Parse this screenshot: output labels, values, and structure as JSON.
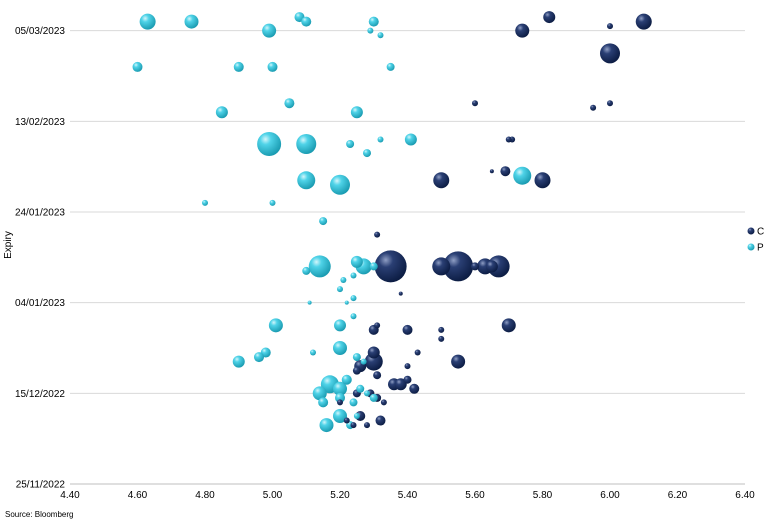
{
  "source": "Source: Bloomberg",
  "colors": {
    "C": "#0f2553",
    "P": "#2fc5dd",
    "grid": "#d9d9d9",
    "axis": "#bfbfbf"
  },
  "chart_data": {
    "type": "scatter",
    "subtype": "bubble",
    "ylabel": "Expiry",
    "xlim": [
      4.4,
      6.4
    ],
    "x_ticks": [
      "4.40",
      "4.60",
      "4.80",
      "5.00",
      "5.20",
      "5.40",
      "5.60",
      "5.80",
      "6.00",
      "6.20",
      "6.40"
    ],
    "ylim": [
      "2022-11-25",
      "2023-03-10"
    ],
    "y_ticks": [
      "05/03/2023",
      "13/02/2023",
      "24/01/2023",
      "04/01/2023",
      "15/12/2022",
      "25/11/2022"
    ],
    "grid": "horizontal",
    "legend": "right",
    "series": [
      {
        "name": "C",
        "points": [
          {
            "x": 5.82,
            "date": "2023-03-08",
            "s": 6
          },
          {
            "x": 6.1,
            "date": "2023-03-07",
            "s": 8
          },
          {
            "x": 6.0,
            "date": "2023-03-06",
            "s": 3
          },
          {
            "x": 5.74,
            "date": "2023-03-05",
            "s": 7
          },
          {
            "x": 6.0,
            "date": "2023-02-28",
            "s": 10
          },
          {
            "x": 5.6,
            "date": "2023-02-17",
            "s": 3
          },
          {
            "x": 5.95,
            "date": "2023-02-16",
            "s": 3
          },
          {
            "x": 6.0,
            "date": "2023-02-17",
            "s": 3
          },
          {
            "x": 5.71,
            "date": "2023-02-09",
            "s": 3
          },
          {
            "x": 5.7,
            "date": "2023-02-09",
            "s": 3
          },
          {
            "x": 5.65,
            "date": "2023-02-02",
            "s": 2
          },
          {
            "x": 5.69,
            "date": "2023-02-02",
            "s": 5
          },
          {
            "x": 5.8,
            "date": "2023-01-31",
            "s": 8
          },
          {
            "x": 5.5,
            "date": "2023-01-31",
            "s": 8
          },
          {
            "x": 5.31,
            "date": "2023-01-19",
            "s": 3
          },
          {
            "x": 5.35,
            "date": "2023-01-12",
            "s": 16
          },
          {
            "x": 5.5,
            "date": "2023-01-12",
            "s": 9
          },
          {
            "x": 5.55,
            "date": "2023-01-12",
            "s": 15
          },
          {
            "x": 5.6,
            "date": "2023-01-12",
            "s": 4
          },
          {
            "x": 5.63,
            "date": "2023-01-12",
            "s": 8
          },
          {
            "x": 5.67,
            "date": "2023-01-12",
            "s": 11
          },
          {
            "x": 5.65,
            "date": "2023-01-12",
            "s": 6
          },
          {
            "x": 5.38,
            "date": "2023-01-06",
            "s": 2
          },
          {
            "x": 5.7,
            "date": "2022-12-30",
            "s": 7
          },
          {
            "x": 5.3,
            "date": "2022-12-29",
            "s": 5
          },
          {
            "x": 5.4,
            "date": "2022-12-29",
            "s": 5
          },
          {
            "x": 5.5,
            "date": "2022-12-29",
            "s": 3
          },
          {
            "x": 5.31,
            "date": "2022-12-30",
            "s": 3
          },
          {
            "x": 5.3,
            "date": "2022-12-24",
            "s": 6
          },
          {
            "x": 5.43,
            "date": "2022-12-24",
            "s": 3
          },
          {
            "x": 5.5,
            "date": "2022-12-27",
            "s": 3
          },
          {
            "x": 5.3,
            "date": "2022-12-22",
            "s": 9
          },
          {
            "x": 5.26,
            "date": "2022-12-21",
            "s": 6
          },
          {
            "x": 5.4,
            "date": "2022-12-21",
            "s": 3
          },
          {
            "x": 5.55,
            "date": "2022-12-22",
            "s": 7
          },
          {
            "x": 5.25,
            "date": "2022-12-20",
            "s": 4
          },
          {
            "x": 5.31,
            "date": "2022-12-19",
            "s": 4
          },
          {
            "x": 5.36,
            "date": "2022-12-17",
            "s": 6
          },
          {
            "x": 5.38,
            "date": "2022-12-17",
            "s": 6
          },
          {
            "x": 5.4,
            "date": "2022-12-18",
            "s": 4
          },
          {
            "x": 5.42,
            "date": "2022-12-16",
            "s": 5
          },
          {
            "x": 5.29,
            "date": "2022-12-15",
            "s": 4
          },
          {
            "x": 5.25,
            "date": "2022-12-15",
            "s": 4
          },
          {
            "x": 5.31,
            "date": "2022-12-14",
            "s": 4
          },
          {
            "x": 5.33,
            "date": "2022-12-13",
            "s": 3
          },
          {
            "x": 5.2,
            "date": "2022-12-13",
            "s": 3
          },
          {
            "x": 5.26,
            "date": "2022-12-10",
            "s": 5
          },
          {
            "x": 5.32,
            "date": "2022-12-09",
            "s": 5
          },
          {
            "x": 5.28,
            "date": "2022-12-08",
            "s": 3
          },
          {
            "x": 5.24,
            "date": "2022-12-08",
            "s": 3
          },
          {
            "x": 5.22,
            "date": "2022-12-09",
            "s": 3
          }
        ]
      },
      {
        "name": "P",
        "points": [
          {
            "x": 4.63,
            "date": "2023-03-07",
            "s": 8
          },
          {
            "x": 4.76,
            "date": "2023-03-07",
            "s": 7
          },
          {
            "x": 5.08,
            "date": "2023-03-08",
            "s": 5
          },
          {
            "x": 5.1,
            "date": "2023-03-07",
            "s": 5
          },
          {
            "x": 4.99,
            "date": "2023-03-05",
            "s": 7
          },
          {
            "x": 5.3,
            "date": "2023-03-07",
            "s": 5
          },
          {
            "x": 5.29,
            "date": "2023-03-05",
            "s": 3
          },
          {
            "x": 5.32,
            "date": "2023-03-04",
            "s": 3
          },
          {
            "x": 4.6,
            "date": "2023-02-25",
            "s": 5
          },
          {
            "x": 4.9,
            "date": "2023-02-25",
            "s": 5
          },
          {
            "x": 5.0,
            "date": "2023-02-25",
            "s": 5
          },
          {
            "x": 5.35,
            "date": "2023-02-25",
            "s": 4
          },
          {
            "x": 4.85,
            "date": "2023-02-15",
            "s": 6
          },
          {
            "x": 5.05,
            "date": "2023-02-17",
            "s": 5
          },
          {
            "x": 5.25,
            "date": "2023-02-15",
            "s": 6
          },
          {
            "x": 4.99,
            "date": "2023-02-08",
            "s": 12
          },
          {
            "x": 5.1,
            "date": "2023-02-08",
            "s": 10
          },
          {
            "x": 5.23,
            "date": "2023-02-08",
            "s": 4
          },
          {
            "x": 5.32,
            "date": "2023-02-09",
            "s": 3
          },
          {
            "x": 5.41,
            "date": "2023-02-09",
            "s": 6
          },
          {
            "x": 5.28,
            "date": "2023-02-06",
            "s": 4
          },
          {
            "x": 5.1,
            "date": "2023-01-31",
            "s": 9
          },
          {
            "x": 5.2,
            "date": "2023-01-30",
            "s": 10
          },
          {
            "x": 5.74,
            "date": "2023-02-01",
            "s": 9
          },
          {
            "x": 4.8,
            "date": "2023-01-26",
            "s": 3
          },
          {
            "x": 5.0,
            "date": "2023-01-26",
            "s": 3
          },
          {
            "x": 5.15,
            "date": "2023-01-22",
            "s": 4
          },
          {
            "x": 5.14,
            "date": "2023-01-12",
            "s": 11
          },
          {
            "x": 5.1,
            "date": "2023-01-11",
            "s": 4
          },
          {
            "x": 5.25,
            "date": "2023-01-13",
            "s": 6
          },
          {
            "x": 5.27,
            "date": "2023-01-12",
            "s": 8
          },
          {
            "x": 5.24,
            "date": "2023-01-10",
            "s": 3
          },
          {
            "x": 5.3,
            "date": "2023-01-12",
            "s": 4
          },
          {
            "x": 5.21,
            "date": "2023-01-09",
            "s": 3
          },
          {
            "x": 5.2,
            "date": "2023-01-07",
            "s": 3
          },
          {
            "x": 5.24,
            "date": "2023-01-05",
            "s": 3
          },
          {
            "x": 5.22,
            "date": "2023-01-04",
            "s": 2
          },
          {
            "x": 5.11,
            "date": "2023-01-04",
            "s": 2
          },
          {
            "x": 5.24,
            "date": "2023-01-01",
            "s": 3
          },
          {
            "x": 5.01,
            "date": "2022-12-30",
            "s": 7
          },
          {
            "x": 5.2,
            "date": "2022-12-30",
            "s": 6
          },
          {
            "x": 5.2,
            "date": "2022-12-25",
            "s": 7
          },
          {
            "x": 4.98,
            "date": "2022-12-24",
            "s": 5
          },
          {
            "x": 4.96,
            "date": "2022-12-23",
            "s": 5
          },
          {
            "x": 4.9,
            "date": "2022-12-22",
            "s": 6
          },
          {
            "x": 5.12,
            "date": "2022-12-24",
            "s": 3
          },
          {
            "x": 5.25,
            "date": "2022-12-23",
            "s": 4
          },
          {
            "x": 5.27,
            "date": "2022-12-22",
            "s": 3
          },
          {
            "x": 5.17,
            "date": "2022-12-17",
            "s": 9
          },
          {
            "x": 5.14,
            "date": "2022-12-15",
            "s": 7
          },
          {
            "x": 5.2,
            "date": "2022-12-16",
            "s": 7
          },
          {
            "x": 5.22,
            "date": "2022-12-18",
            "s": 5
          },
          {
            "x": 5.26,
            "date": "2022-12-16",
            "s": 4
          },
          {
            "x": 5.28,
            "date": "2022-12-15",
            "s": 3
          },
          {
            "x": 5.15,
            "date": "2022-12-13",
            "s": 5
          },
          {
            "x": 5.2,
            "date": "2022-12-14",
            "s": 5
          },
          {
            "x": 5.24,
            "date": "2022-12-13",
            "s": 4
          },
          {
            "x": 5.3,
            "date": "2022-12-14",
            "s": 4
          },
          {
            "x": 5.16,
            "date": "2022-12-08",
            "s": 7
          },
          {
            "x": 5.2,
            "date": "2022-12-10",
            "s": 7
          },
          {
            "x": 5.23,
            "date": "2022-12-08",
            "s": 4
          },
          {
            "x": 5.25,
            "date": "2022-12-10",
            "s": 3
          }
        ]
      }
    ]
  }
}
